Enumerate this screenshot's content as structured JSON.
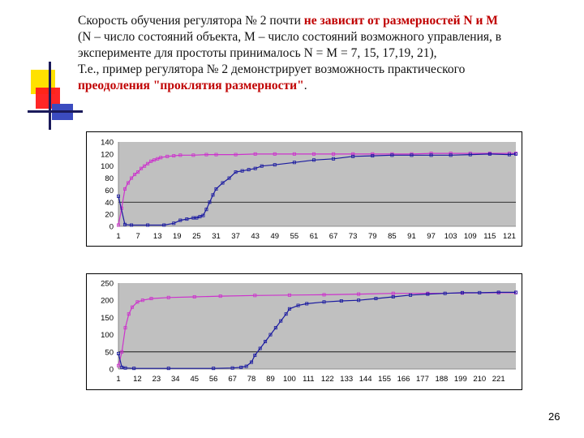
{
  "slide": {
    "line1_normal": "Скорость обучения регулятора № 2 почти ",
    "line1_bold": "не зависит от размерностей N и M",
    "line2": "(N – число состояний объекта, M – число состояний возможного управления, в",
    "line3": "эксперименте для простоты принималось N = M = 7, 15, 17,19, 21),",
    "line4": "Т.е., пример регулятора № 2 демонстрирует возможность практического",
    "line5_bold": "преодоления \"проклятия размерности\"",
    "line5_end": ".",
    "page_number": "26"
  },
  "colors": {
    "plot_bg": "#c0c0c0",
    "magenta_series": "#cc33cc",
    "blue_series": "#1a1aa0",
    "accent_red": "#c00000",
    "deco_yellow": "#ffe100",
    "deco_red": "#ff1a1a",
    "deco_blue": "#3b4bbf"
  },
  "chart_data": [
    {
      "type": "line",
      "yticks": [
        "140",
        "120",
        "100",
        "80",
        "60",
        "40",
        "20",
        "0"
      ],
      "xticks": [
        "1",
        "7",
        "13",
        "19",
        "25",
        "31",
        "37",
        "43",
        "49",
        "55",
        "61",
        "67",
        "73",
        "79",
        "85",
        "91",
        "97",
        "103",
        "109",
        "115",
        "121"
      ],
      "ylim": [
        0,
        140
      ],
      "xlim": [
        1,
        123
      ],
      "gridlines_y": [
        40
      ],
      "series": [
        {
          "color": "magenta",
          "x": [
            1,
            2,
            3,
            4,
            5,
            6,
            7,
            8,
            9,
            10,
            11,
            12,
            13,
            14,
            16,
            18,
            20,
            24,
            28,
            31,
            37,
            43,
            49,
            55,
            61,
            67,
            73,
            79,
            85,
            91,
            97,
            103,
            109,
            115,
            121,
            123
          ],
          "y": [
            2,
            30,
            62,
            72,
            80,
            86,
            90,
            96,
            100,
            104,
            108,
            110,
            112,
            114,
            116,
            117,
            118,
            118,
            119,
            119,
            119,
            120,
            120,
            120,
            120,
            120,
            120,
            120,
            120,
            120,
            121,
            121,
            121,
            121,
            121,
            121
          ]
        },
        {
          "color": "blue",
          "x": [
            1,
            3,
            5,
            10,
            15,
            18,
            20,
            22,
            24,
            25,
            26,
            27,
            28,
            29,
            30,
            31,
            33,
            35,
            37,
            39,
            41,
            43,
            45,
            49,
            55,
            61,
            67,
            73,
            79,
            85,
            91,
            97,
            103,
            109,
            115,
            121,
            123
          ],
          "y": [
            50,
            3,
            2,
            2,
            2,
            5,
            10,
            12,
            14,
            14,
            16,
            18,
            28,
            40,
            52,
            62,
            72,
            80,
            90,
            92,
            94,
            96,
            100,
            102,
            106,
            110,
            112,
            116,
            117,
            118,
            118,
            118,
            118,
            119,
            120,
            119,
            120
          ]
        }
      ]
    },
    {
      "type": "line",
      "yticks": [
        "250",
        "200",
        "150",
        "100",
        "50",
        "0"
      ],
      "xticks": [
        "1",
        "12",
        "23",
        "34",
        "45",
        "56",
        "67",
        "78",
        "89",
        "100",
        "111",
        "122",
        "133",
        "144",
        "155",
        "166",
        "177",
        "188",
        "199",
        "210",
        "221"
      ],
      "ylim": [
        0,
        250
      ],
      "xlim": [
        1,
        231
      ],
      "gridlines_y": [
        50
      ],
      "series": [
        {
          "color": "magenta",
          "x": [
            1,
            3,
            5,
            7,
            9,
            12,
            15,
            20,
            30,
            45,
            60,
            80,
            100,
            120,
            140,
            160,
            180,
            200,
            221,
            231
          ],
          "y": [
            10,
            50,
            120,
            160,
            180,
            195,
            200,
            205,
            208,
            210,
            212,
            214,
            215,
            216,
            218,
            220,
            220,
            221,
            222,
            222
          ]
        },
        {
          "color": "blue",
          "x": [
            1,
            3,
            5,
            10,
            30,
            56,
            67,
            72,
            75,
            78,
            80,
            83,
            86,
            89,
            92,
            95,
            98,
            100,
            105,
            110,
            120,
            130,
            140,
            150,
            160,
            170,
            180,
            190,
            200,
            210,
            221,
            231
          ],
          "y": [
            45,
            5,
            3,
            2,
            2,
            2,
            3,
            5,
            8,
            20,
            40,
            60,
            80,
            100,
            120,
            140,
            160,
            175,
            185,
            190,
            195,
            198,
            200,
            205,
            210,
            215,
            218,
            220,
            222,
            222,
            223,
            223
          ]
        }
      ]
    }
  ]
}
